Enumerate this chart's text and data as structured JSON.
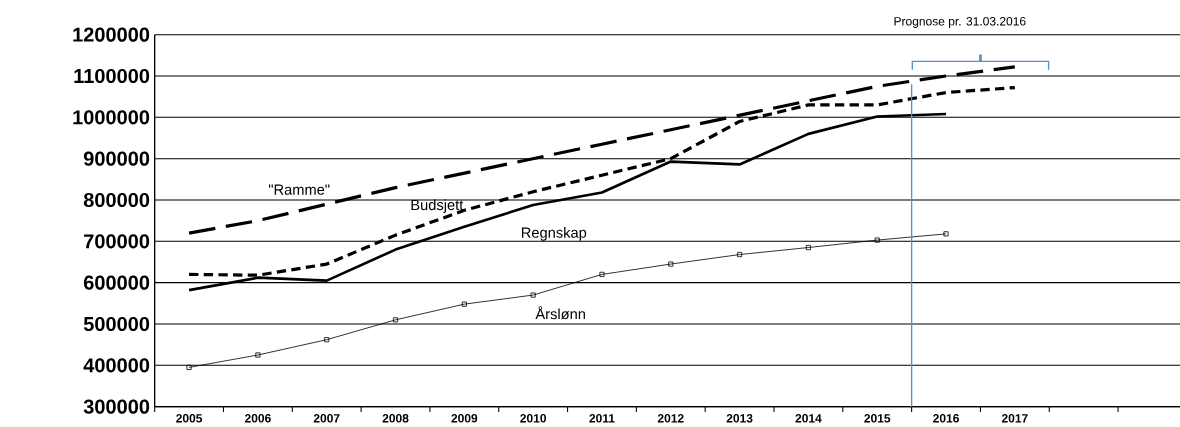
{
  "chart_data": {
    "type": "line",
    "x": [
      2005,
      2006,
      2007,
      2008,
      2009,
      2010,
      2011,
      2012,
      2013,
      2014,
      2015,
      2016,
      2017
    ],
    "xlim": [
      2004.5,
      2019.4
    ],
    "xticks": [
      2005,
      2006,
      2007,
      2008,
      2009,
      2010,
      2011,
      2012,
      2013,
      2014,
      2015,
      2016,
      2017
    ],
    "ylim": [
      300000,
      1200000
    ],
    "yticks": [
      300000,
      400000,
      500000,
      600000,
      700000,
      800000,
      900000,
      1000000,
      1100000,
      1200000
    ],
    "grid": "y",
    "series": [
      {
        "name": "\"Ramme\"",
        "color": "#000000",
        "line_style": "dashed",
        "marker": "none",
        "values": [
          720000,
          750000,
          790000,
          830000,
          865000,
          900000,
          935000,
          970000,
          1005000,
          1040000,
          1075000,
          1100000,
          1122000
        ]
      },
      {
        "name": "Budsjett",
        "color": "#000000",
        "line_style": "dotted",
        "marker": "none",
        "values": [
          620000,
          618000,
          645000,
          715000,
          775000,
          820000,
          860000,
          900000,
          990000,
          1030000,
          1030000,
          1060000,
          1072000
        ]
      },
      {
        "name": "Regnskap",
        "color": "#000000",
        "line_style": "solid",
        "marker": "none",
        "values": [
          582000,
          612000,
          605000,
          680000,
          735000,
          788000,
          818000,
          893000,
          886000,
          960000,
          1002000,
          1008000,
          null
        ]
      },
      {
        "name": "Årslønn",
        "color": "#000000",
        "line_style": "solid",
        "marker": "square",
        "values": [
          395000,
          425000,
          462000,
          510000,
          548000,
          570000,
          620000,
          645000,
          668000,
          685000,
          703000,
          718000,
          null
        ]
      }
    ],
    "ref_lines": [
      {
        "axis": "x",
        "value": 2015.5,
        "color": "#5b8fd0"
      }
    ],
    "annotations": [
      "Prognose pr. 31.03.2016"
    ]
  }
}
